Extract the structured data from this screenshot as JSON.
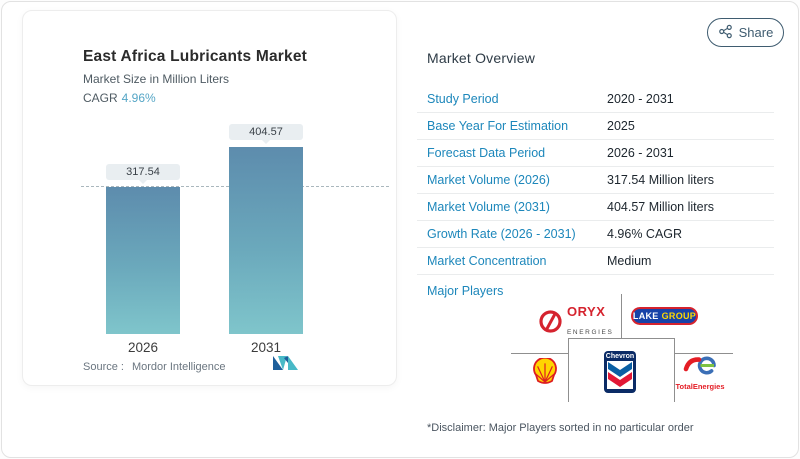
{
  "share": {
    "label": "Share"
  },
  "chart_card": {
    "title": "East Africa Lubricants Market",
    "subtitle": "Market Size in Million Liters",
    "cagr_label": "CAGR",
    "cagr_value": "4.96%",
    "source_label": "Source :",
    "source_value": "Mordor Intelligence"
  },
  "chart_data": {
    "type": "bar",
    "title": "East Africa Lubricants Market",
    "subtitle": "Market Size in Million Liters",
    "categories": [
      "2026",
      "2031"
    ],
    "values": [
      317.54,
      404.57
    ],
    "value_labels": [
      "317.54",
      "404.57"
    ],
    "ylabel": "Million Liters",
    "ylim": [
      0,
      500
    ],
    "grid": false,
    "legend": "none",
    "reference_line_at": 317.54,
    "bar_gradient_top": "#5d8cad",
    "bar_gradient_bottom": "#7fc5cb",
    "cagr": "4.96%"
  },
  "overview": {
    "title": "Market Overview",
    "rows": [
      {
        "label": "Study Period",
        "value": "2020 - 2031"
      },
      {
        "label": "Base Year For Estimation",
        "value": "2025"
      },
      {
        "label": "Forecast Data Period",
        "value": "2026 - 2031"
      },
      {
        "label": "Market Volume (2026)",
        "value": "317.54 Million liters"
      },
      {
        "label": "Market Volume (2031)",
        "value": "404.57 Million liters"
      },
      {
        "label": "Growth Rate (2026 - 2031)",
        "value": "4.96% CAGR"
      },
      {
        "label": "Market Concentration",
        "value": "Medium"
      }
    ],
    "major_players_label": "Major Players",
    "disclaimer": "*Disclaimer: Major Players sorted in no particular order"
  },
  "players": {
    "names": [
      "Oryx Energies",
      "Lake Group",
      "Shell",
      "Chevron",
      "TotalEnergies"
    ],
    "oryx_line1": "ORYX",
    "oryx_line2": "ENERGIES",
    "lake_word1": "LAKE",
    "lake_word2": "GROUP",
    "chevron_text": "Chevron",
    "total_text": "TotalEnergies"
  },
  "colors": {
    "label_blue": "#1d87bb",
    "cagr_teal": "#55a6c6",
    "share": "#3f5c70",
    "bar_top": "#5d8cad",
    "bar_bottom": "#7fc5cb"
  }
}
